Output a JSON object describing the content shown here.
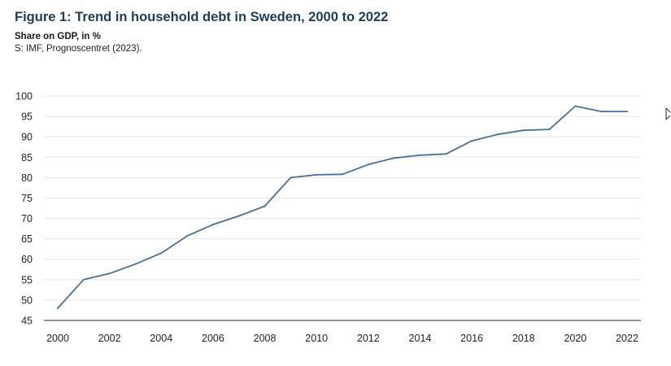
{
  "header": {
    "title": "Figure 1: Trend in household debt in Sweden, 2000 to 2022",
    "subtitle": "Share on GDP, in %",
    "source": "S: IMF, Prognoscentret (2023)."
  },
  "chart_data": {
    "type": "line",
    "title": "Figure 1: Trend in household debt in Sweden, 2000 to 2022",
    "subtitle": "Share on GDP, in %",
    "xlabel": "",
    "ylabel": "",
    "x": [
      2000,
      2001,
      2002,
      2003,
      2004,
      2005,
      2006,
      2007,
      2008,
      2009,
      2010,
      2011,
      2012,
      2013,
      2014,
      2015,
      2016,
      2017,
      2018,
      2019,
      2020,
      2021,
      2022
    ],
    "series": [
      {
        "values": [
          48.0,
          55.0,
          56.5,
          58.8,
          61.5,
          65.7,
          68.5,
          70.6,
          73.0,
          80.0,
          80.7,
          80.8,
          83.2,
          84.8,
          85.5,
          85.8,
          89.0,
          90.6,
          91.6,
          91.8,
          97.5,
          96.2,
          96.2
        ]
      }
    ],
    "x_ticks": [
      "2000",
      "2002",
      "2004",
      "2006",
      "2008",
      "2010",
      "2012",
      "2014",
      "2016",
      "2018",
      "2020",
      "2022"
    ],
    "y_ticks": [
      "45",
      "50",
      "55",
      "60",
      "65",
      "70",
      "75",
      "80",
      "85",
      "90",
      "95",
      "100"
    ],
    "xlim": [
      2000,
      2022
    ],
    "ylim": [
      45,
      100
    ],
    "grid": true,
    "legend": "none",
    "colors": {
      "line": "#4a6f94",
      "grid": "#e6e6e6",
      "axis": "#555555",
      "title": "#1f3b5a"
    }
  }
}
